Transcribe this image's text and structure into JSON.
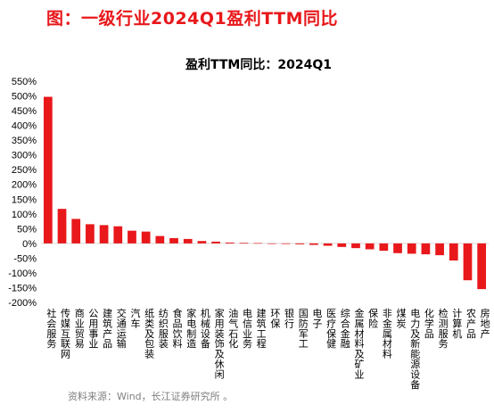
{
  "figure_title": "图：一级行业2024Q1盈利TTM同比",
  "source": "资料来源：Wind，长江证券研究所 。",
  "chart_data": {
    "type": "bar",
    "title": "盈利TTM同比：2024Q1",
    "xlabel": "",
    "ylabel": "",
    "ylim": [
      -200,
      550
    ],
    "yticks": [
      -200,
      -150,
      -100,
      -50,
      0,
      50,
      100,
      150,
      200,
      250,
      300,
      350,
      400,
      450,
      500,
      550
    ],
    "ytick_suffix": "%",
    "grid": false,
    "legend": "none",
    "bar_color": "#e8181b",
    "categories": [
      "社会服务",
      "传媒互联网",
      "商业贸易",
      "公用事业",
      "建筑产品",
      "交通运输",
      "汽车",
      "纸类及包装",
      "纺织服装",
      "食品饮料",
      "家电制造",
      "机械设备",
      "家用装饰及休闲",
      "油气石化",
      "电信业务",
      "建筑工程",
      "环保",
      "银行",
      "国防军工",
      "电子",
      "医疗保健",
      "综合金融",
      "金属材料及矿业",
      "保险",
      "非金属材料",
      "煤炭",
      "电力及新能源设备",
      "化学品",
      "检测服务",
      "计算机",
      "农产品",
      "房地产"
    ],
    "values": [
      497,
      117,
      83,
      65,
      62,
      58,
      43,
      40,
      25,
      18,
      15,
      8,
      6,
      3,
      2,
      1,
      -1,
      -2,
      -3,
      -5,
      -8,
      -12,
      -16,
      -20,
      -25,
      -33,
      -35,
      -37,
      -40,
      -58,
      -125,
      -155
    ]
  }
}
